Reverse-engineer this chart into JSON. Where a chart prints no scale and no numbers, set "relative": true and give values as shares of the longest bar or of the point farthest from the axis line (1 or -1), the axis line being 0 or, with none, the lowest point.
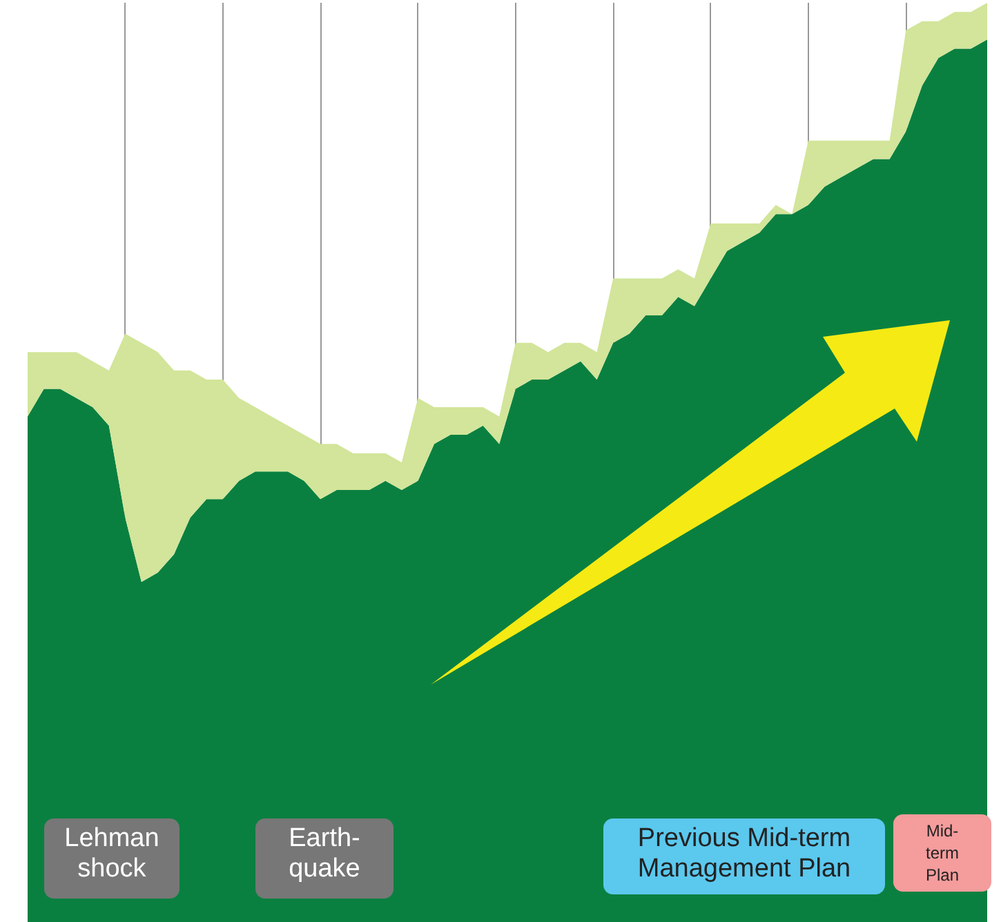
{
  "chart_data": {
    "type": "area",
    "relative": true,
    "stacked": true,
    "grid": "x",
    "categories": [
      null,
      null,
      null,
      null,
      null,
      null,
      null,
      null,
      null,
      null,
      null,
      null,
      null,
      null,
      null,
      null,
      null,
      null,
      null,
      null,
      null,
      null,
      null,
      null,
      null,
      null,
      null,
      null,
      null,
      null,
      null,
      null,
      null,
      null,
      null,
      null,
      null,
      null,
      null,
      null,
      null,
      null,
      null,
      null,
      null,
      null,
      null,
      null,
      null,
      null,
      null,
      null,
      null,
      null,
      null,
      null,
      null,
      null,
      null,
      null
    ],
    "series": [
      {
        "color": "#0a8040",
        "values": [
          0.55,
          0.58,
          0.58,
          0.57,
          0.56,
          0.54,
          0.44,
          0.37,
          0.38,
          0.4,
          0.44,
          0.46,
          0.46,
          0.48,
          0.49,
          0.49,
          0.49,
          0.48,
          0.46,
          0.47,
          0.47,
          0.47,
          0.48,
          0.47,
          0.48,
          0.52,
          0.53,
          0.53,
          0.54,
          0.52,
          0.58,
          0.59,
          0.59,
          0.6,
          0.61,
          0.59,
          0.63,
          0.64,
          0.66,
          0.66,
          0.68,
          0.67,
          0.7,
          0.73,
          0.74,
          0.75,
          0.77,
          0.77,
          0.78,
          0.8,
          0.81,
          0.82,
          0.83,
          0.83,
          0.86,
          0.91,
          0.94,
          0.95,
          0.95,
          0.96
        ]
      },
      {
        "color": "#d2e59a",
        "values": [
          0.07,
          0.04,
          0.04,
          0.05,
          0.05,
          0.06,
          0.2,
          0.26,
          0.24,
          0.2,
          0.16,
          0.13,
          0.13,
          0.09,
          0.07,
          0.06,
          0.05,
          0.05,
          0.06,
          0.05,
          0.04,
          0.04,
          0.03,
          0.03,
          0.09,
          0.04,
          0.03,
          0.03,
          0.02,
          0.03,
          0.05,
          0.04,
          0.03,
          0.03,
          0.02,
          0.03,
          0.07,
          0.06,
          0.04,
          0.04,
          0.03,
          0.03,
          0.06,
          0.03,
          0.02,
          0.01,
          0.01,
          0.0,
          0.07,
          0.05,
          0.04,
          0.03,
          0.02,
          0.02,
          0.11,
          0.07,
          0.04,
          0.04,
          0.04,
          0.04
        ]
      }
    ],
    "annotations": [
      "Lehman\nshock",
      "Earth-\nquake",
      "Previous Mid-term\nManagement Plan",
      "Mid-\nterm\nPlan"
    ]
  }
}
